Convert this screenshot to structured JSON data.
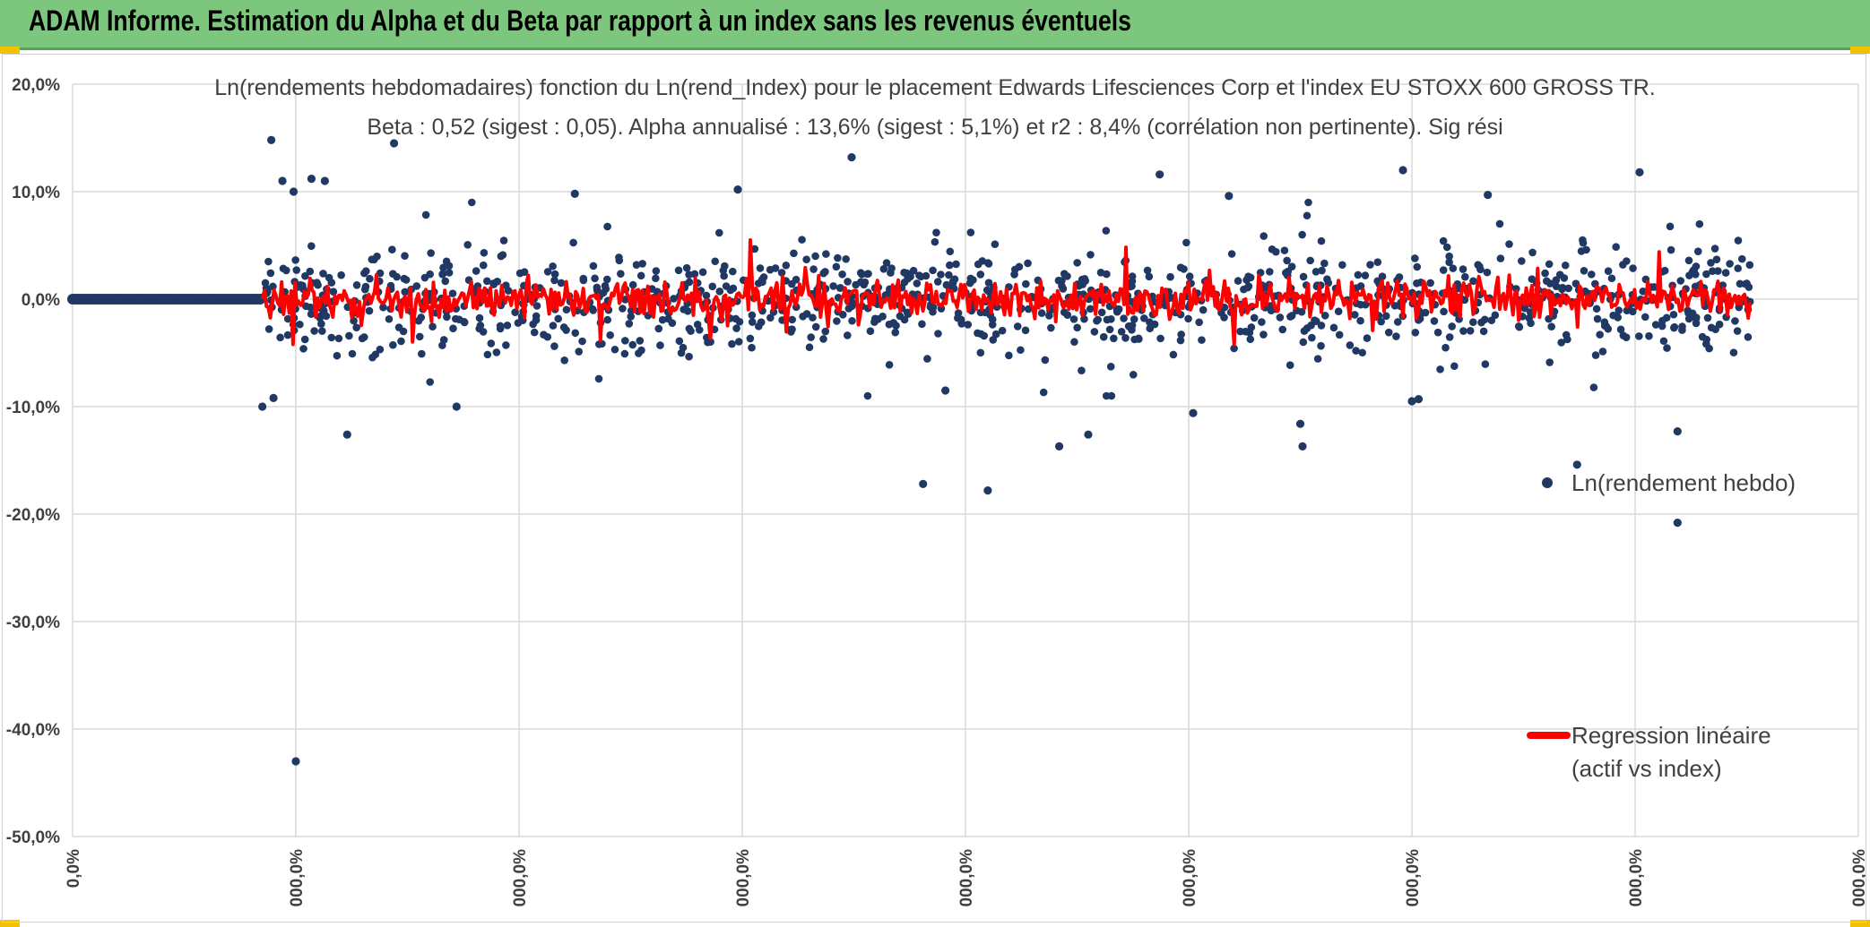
{
  "header": {
    "title": "ADAM Informe. Estimation du Alpha et du Beta par rapport à un index sans les revenus éventuels"
  },
  "colors": {
    "header_bg": "#7dc67e",
    "dots": "#203864",
    "regression": "#ff0000",
    "grid": "#d9d9d9",
    "corner": "#f2c200"
  },
  "chart_data": {
    "type": "scatter",
    "title_line1": "Ln(rendements hebdomadaires) fonction du Ln(rend_Index) pour le placement Edwards Lifesciences Corp et l'index EU STOXX 600 GROSS TR.",
    "title_line2": "Beta : 0,52 (sigest : 0,05). Alpha annualisé : 13,6% (sigest : 5,1%) et r2 : 8,4% (corrélation non pertinente). Sig rési",
    "y_ticks": [
      "20,0%",
      "10,0%",
      "0,0%",
      "-10,0%",
      "-20,0%",
      "-30,0%",
      "-40,0%",
      "-50,0%"
    ],
    "y_tick_values": [
      20,
      10,
      0,
      -10,
      -20,
      -30,
      -40,
      -50
    ],
    "ylim": [
      -50,
      20
    ],
    "x_ticks": [
      "0,0%",
      "000,0%",
      "000,0%",
      "000,0%",
      "000,0%",
      "000,0%",
      "000,0%",
      "000,0%",
      "000,0%"
    ],
    "xlim": [
      0,
      8
    ],
    "legend": [
      {
        "label": "Ln(rendement hebdo)",
        "kind": "dot"
      },
      {
        "label_line1": "Regression linéaire",
        "label_line2": "(actif vs index)",
        "kind": "line"
      }
    ],
    "series": [
      {
        "name": "Ln(rendement hebdo)",
        "note": "flat segment at 0% from x=0 to x=0.85, then dense cloud",
        "flat_segment": [
          0,
          0.85
        ],
        "cloud_range": [
          0.85,
          7.55
        ],
        "cloud_points": 1150,
        "outliers": [
          {
            "x": 0.85,
            "y": -10.0
          },
          {
            "x": 0.89,
            "y": 14.8
          },
          {
            "x": 0.9,
            "y": -9.2
          },
          {
            "x": 0.94,
            "y": 11.0
          },
          {
            "x": 0.99,
            "y": 10.0
          },
          {
            "x": 1.0,
            "y": -43.0
          },
          {
            "x": 1.07,
            "y": 11.2
          },
          {
            "x": 1.13,
            "y": 11.0
          },
          {
            "x": 1.23,
            "y": -12.6
          },
          {
            "x": 1.44,
            "y": 14.5
          },
          {
            "x": 1.72,
            "y": -10.0
          },
          {
            "x": 2.25,
            "y": 9.8
          },
          {
            "x": 2.98,
            "y": 10.2
          },
          {
            "x": 3.49,
            "y": 13.2
          },
          {
            "x": 3.81,
            "y": -17.2
          },
          {
            "x": 3.91,
            "y": -8.5
          },
          {
            "x": 4.1,
            "y": -17.8
          },
          {
            "x": 4.42,
            "y": -13.7
          },
          {
            "x": 4.55,
            "y": -12.6
          },
          {
            "x": 4.87,
            "y": 11.6
          },
          {
            "x": 5.02,
            "y": -10.6
          },
          {
            "x": 5.18,
            "y": 9.6
          },
          {
            "x": 5.5,
            "y": -11.6
          },
          {
            "x": 5.51,
            "y": -13.7
          },
          {
            "x": 5.96,
            "y": 12.0
          },
          {
            "x": 6.34,
            "y": 9.7
          },
          {
            "x": 6.03,
            "y": -9.3
          },
          {
            "x": 6.74,
            "y": -15.4
          },
          {
            "x": 7.02,
            "y": 11.8
          },
          {
            "x": 7.19,
            "y": -12.3
          },
          {
            "x": 7.19,
            "y": -20.8
          },
          {
            "x": 6.0,
            "y": -9.5
          }
        ]
      },
      {
        "name": "Regression linéaire (actif vs index)",
        "note": "red spikes, mostly within ±3%, some to ±6%"
      }
    ]
  }
}
